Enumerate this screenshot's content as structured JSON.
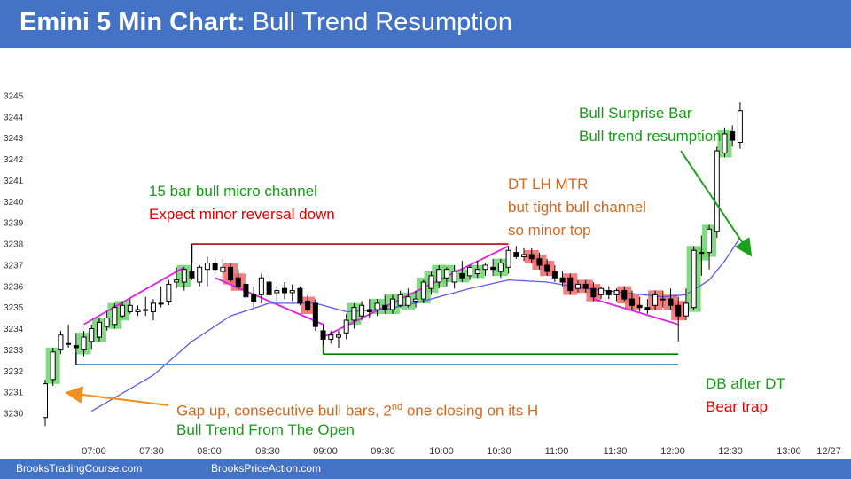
{
  "title": {
    "bold": "Emini 5 Min Chart:",
    "rest": " Bull Trend Resumption"
  },
  "footer": {
    "left": "BrooksTradingCourse.com",
    "right": "BrooksPriceAction.com"
  },
  "annotations": {
    "micro_channel_1": "15 bar bull micro channel",
    "micro_channel_2": "Expect minor reversal down",
    "dt_1": "DT LH MTR",
    "dt_2": "but tight bull channel",
    "dt_3": "so minor top",
    "surprise_1": "Bull Surprise Bar",
    "surprise_2": "Bull trend resumption",
    "gap_1": "Gap up, consecutive  bull bars, 2",
    "gap_sup": "nd",
    "gap_1b": " one closing on its H",
    "gap_2": "Bull Trend From The Open",
    "db_1": "DB after DT",
    "db_2": "Bear trap"
  },
  "colors": {
    "bull_highlight": "#6fd46f",
    "bear_highlight": "#f06868",
    "ema": "#5a5ae6",
    "magenta": "#e020e0",
    "red_line": "#c00000",
    "green_line": "#008000",
    "blue_line": "#1f6fb5",
    "arrow_orange": "#f0901e",
    "arrow_green": "#1aa01a",
    "title_bar": "#4472c4"
  },
  "chart_data": {
    "type": "candlestick",
    "y_ticks": [
      3230,
      3231,
      3232,
      3233,
      3234,
      3235,
      3236,
      3237,
      3238,
      3239,
      3240,
      3241,
      3242,
      3243,
      3244,
      3245
    ],
    "ylim": [
      3229.5,
      3245.5
    ],
    "x_ticks": [
      "07:00",
      "07:30",
      "08:00",
      "08:30",
      "09:00",
      "09:30",
      "10:00",
      "10:30",
      "11:00",
      "11:30",
      "12:00",
      "12:30",
      "13:00",
      "12/27"
    ],
    "bars": [
      {
        "t": 1,
        "o": 3229.8,
        "h": 3231.6,
        "l": 3229.4,
        "c": 3231.4
      },
      {
        "t": 2,
        "o": 3231.6,
        "h": 3233.1,
        "l": 3231.3,
        "c": 3232.9
      },
      {
        "t": 3,
        "o": 3233.0,
        "h": 3233.9,
        "l": 3232.8,
        "c": 3233.7
      },
      {
        "t": 4,
        "o": 3233.3,
        "h": 3234.2,
        "l": 3233.1,
        "c": 3233.3
      },
      {
        "t": 5,
        "o": 3233.2,
        "h": 3233.8,
        "l": 3232.3,
        "c": 3233.1
      },
      {
        "t": 6,
        "o": 3233.0,
        "h": 3233.9,
        "l": 3232.7,
        "c": 3233.6
      },
      {
        "t": 7,
        "o": 3233.4,
        "h": 3234.2,
        "l": 3233.0,
        "c": 3234.0
      },
      {
        "t": 8,
        "o": 3233.6,
        "h": 3234.5,
        "l": 3233.4,
        "c": 3234.3
      },
      {
        "t": 9,
        "o": 3234.1,
        "h": 3234.8,
        "l": 3233.9,
        "c": 3234.5
      },
      {
        "t": 10,
        "o": 3234.2,
        "h": 3235.2,
        "l": 3234.0,
        "c": 3235.0
      },
      {
        "t": 11,
        "o": 3234.6,
        "h": 3235.3,
        "l": 3234.5,
        "c": 3235.1
      },
      {
        "t": 12,
        "o": 3234.8,
        "h": 3235.4,
        "l": 3234.7,
        "c": 3235.1
      },
      {
        "t": 13,
        "o": 3234.8,
        "h": 3235.1,
        "l": 3234.6,
        "c": 3234.9
      },
      {
        "t": 14,
        "o": 3234.9,
        "h": 3235.5,
        "l": 3234.6,
        "c": 3234.9
      },
      {
        "t": 15,
        "o": 3234.8,
        "h": 3235.4,
        "l": 3234.4,
        "c": 3235.2
      },
      {
        "t": 16,
        "o": 3235.2,
        "h": 3236.0,
        "l": 3235.0,
        "c": 3235.2
      },
      {
        "t": 17,
        "o": 3235.3,
        "h": 3236.3,
        "l": 3235.1,
        "c": 3236.1
      },
      {
        "t": 18,
        "o": 3236.2,
        "h": 3236.9,
        "l": 3235.9,
        "c": 3236.3
      },
      {
        "t": 19,
        "o": 3236.2,
        "h": 3236.9,
        "l": 3235.8,
        "c": 3236.8
      },
      {
        "t": 20,
        "o": 3236.7,
        "h": 3238.0,
        "l": 3236.3,
        "c": 3236.4
      },
      {
        "t": 21,
        "o": 3236.2,
        "h": 3237.0,
        "l": 3236.0,
        "c": 3236.9
      },
      {
        "t": 22,
        "o": 3236.8,
        "h": 3237.4,
        "l": 3236.0,
        "c": 3237.1
      },
      {
        "t": 23,
        "o": 3237.1,
        "h": 3237.3,
        "l": 3236.6,
        "c": 3236.8
      },
      {
        "t": 24,
        "o": 3236.7,
        "h": 3237.3,
        "l": 3236.4,
        "c": 3236.9
      },
      {
        "t": 25,
        "o": 3236.9,
        "h": 3237.1,
        "l": 3236.2,
        "c": 3236.3
      },
      {
        "t": 26,
        "o": 3236.4,
        "h": 3236.8,
        "l": 3235.8,
        "c": 3236.0
      },
      {
        "t": 27,
        "o": 3236.1,
        "h": 3236.6,
        "l": 3235.4,
        "c": 3235.5
      },
      {
        "t": 28,
        "o": 3235.6,
        "h": 3236.0,
        "l": 3235.0,
        "c": 3235.3
      },
      {
        "t": 29,
        "o": 3235.6,
        "h": 3236.6,
        "l": 3235.2,
        "c": 3236.4
      },
      {
        "t": 30,
        "o": 3236.2,
        "h": 3236.5,
        "l": 3235.5,
        "c": 3235.6
      },
      {
        "t": 31,
        "o": 3235.7,
        "h": 3236.0,
        "l": 3235.3,
        "c": 3235.8
      },
      {
        "t": 32,
        "o": 3235.9,
        "h": 3236.2,
        "l": 3235.4,
        "c": 3235.7
      },
      {
        "t": 33,
        "o": 3235.7,
        "h": 3236.1,
        "l": 3235.3,
        "c": 3235.8
      },
      {
        "t": 34,
        "o": 3235.9,
        "h": 3236.0,
        "l": 3235.1,
        "c": 3235.2
      },
      {
        "t": 35,
        "o": 3235.3,
        "h": 3235.6,
        "l": 3234.8,
        "c": 3234.9
      },
      {
        "t": 36,
        "o": 3235.2,
        "h": 3235.4,
        "l": 3233.9,
        "c": 3234.1
      },
      {
        "t": 37,
        "o": 3233.9,
        "h": 3234.2,
        "l": 3233.2,
        "c": 3233.5
      },
      {
        "t": 38,
        "o": 3233.5,
        "h": 3233.9,
        "l": 3233.3,
        "c": 3233.7
      },
      {
        "t": 39,
        "o": 3233.6,
        "h": 3233.9,
        "l": 3233.1,
        "c": 3233.7
      },
      {
        "t": 40,
        "o": 3233.8,
        "h": 3234.7,
        "l": 3233.5,
        "c": 3234.4
      },
      {
        "t": 41,
        "o": 3234.4,
        "h": 3235.2,
        "l": 3234.0,
        "c": 3235.0
      },
      {
        "t": 42,
        "o": 3234.6,
        "h": 3235.3,
        "l": 3234.4,
        "c": 3235.1
      },
      {
        "t": 43,
        "o": 3234.9,
        "h": 3235.4,
        "l": 3234.5,
        "c": 3234.8
      },
      {
        "t": 44,
        "o": 3234.9,
        "h": 3235.4,
        "l": 3234.6,
        "c": 3235.2
      },
      {
        "t": 45,
        "o": 3235.1,
        "h": 3235.6,
        "l": 3234.7,
        "c": 3234.9
      },
      {
        "t": 46,
        "o": 3234.9,
        "h": 3235.6,
        "l": 3234.7,
        "c": 3235.4
      },
      {
        "t": 47,
        "o": 3235.1,
        "h": 3235.8,
        "l": 3235.0,
        "c": 3235.6
      },
      {
        "t": 48,
        "o": 3235.1,
        "h": 3235.9,
        "l": 3235.0,
        "c": 3235.5
      },
      {
        "t": 49,
        "o": 3235.3,
        "h": 3235.8,
        "l": 3235.0,
        "c": 3235.4
      },
      {
        "t": 50,
        "o": 3235.4,
        "h": 3236.3,
        "l": 3235.2,
        "c": 3236.2
      },
      {
        "t": 51,
        "o": 3235.9,
        "h": 3236.7,
        "l": 3235.6,
        "c": 3236.5
      },
      {
        "t": 52,
        "o": 3236.2,
        "h": 3237.0,
        "l": 3235.9,
        "c": 3236.8
      },
      {
        "t": 53,
        "o": 3236.4,
        "h": 3236.9,
        "l": 3236.0,
        "c": 3236.8
      },
      {
        "t": 54,
        "o": 3236.2,
        "h": 3237.0,
        "l": 3235.9,
        "c": 3236.7
      },
      {
        "t": 55,
        "o": 3236.6,
        "h": 3237.2,
        "l": 3236.2,
        "c": 3236.4
      },
      {
        "t": 56,
        "o": 3236.5,
        "h": 3237.0,
        "l": 3236.3,
        "c": 3236.9
      },
      {
        "t": 57,
        "o": 3236.6,
        "h": 3237.2,
        "l": 3236.4,
        "c": 3236.8
      },
      {
        "t": 58,
        "o": 3236.8,
        "h": 3237.1,
        "l": 3236.5,
        "c": 3237.0
      },
      {
        "t": 59,
        "o": 3236.9,
        "h": 3237.3,
        "l": 3236.5,
        "c": 3236.8
      },
      {
        "t": 60,
        "o": 3236.7,
        "h": 3237.3,
        "l": 3236.4,
        "c": 3237.1
      },
      {
        "t": 61,
        "o": 3236.9,
        "h": 3237.9,
        "l": 3236.6,
        "c": 3237.7
      },
      {
        "t": 62,
        "o": 3237.6,
        "h": 3237.9,
        "l": 3237.3,
        "c": 3237.4
      },
      {
        "t": 63,
        "o": 3237.4,
        "h": 3237.8,
        "l": 3237.2,
        "c": 3237.5
      },
      {
        "t": 64,
        "o": 3237.5,
        "h": 3237.8,
        "l": 3237.1,
        "c": 3237.3
      },
      {
        "t": 65,
        "o": 3237.3,
        "h": 3237.6,
        "l": 3236.8,
        "c": 3237.0
      },
      {
        "t": 66,
        "o": 3237.0,
        "h": 3237.3,
        "l": 3236.5,
        "c": 3236.7
      },
      {
        "t": 67,
        "o": 3236.7,
        "h": 3237.0,
        "l": 3236.2,
        "c": 3236.4
      },
      {
        "t": 68,
        "o": 3236.4,
        "h": 3236.7,
        "l": 3236.0,
        "c": 3236.2
      },
      {
        "t": 69,
        "o": 3236.4,
        "h": 3236.6,
        "l": 3235.6,
        "c": 3235.8
      },
      {
        "t": 70,
        "o": 3235.9,
        "h": 3236.3,
        "l": 3235.7,
        "c": 3236.1
      },
      {
        "t": 71,
        "o": 3236.1,
        "h": 3236.3,
        "l": 3235.7,
        "c": 3235.9
      },
      {
        "t": 72,
        "o": 3235.9,
        "h": 3236.2,
        "l": 3235.3,
        "c": 3235.5
      },
      {
        "t": 73,
        "o": 3235.6,
        "h": 3236.0,
        "l": 3235.4,
        "c": 3235.9
      },
      {
        "t": 74,
        "o": 3235.8,
        "h": 3236.0,
        "l": 3235.4,
        "c": 3235.6
      },
      {
        "t": 75,
        "o": 3235.6,
        "h": 3235.9,
        "l": 3235.3,
        "c": 3235.8
      },
      {
        "t": 76,
        "o": 3235.8,
        "h": 3236.0,
        "l": 3235.3,
        "c": 3235.4
      },
      {
        "t": 77,
        "o": 3235.4,
        "h": 3235.8,
        "l": 3234.9,
        "c": 3235.1
      },
      {
        "t": 78,
        "o": 3235.1,
        "h": 3235.5,
        "l": 3234.8,
        "c": 3235.0
      },
      {
        "t": 79,
        "o": 3235.0,
        "h": 3235.4,
        "l": 3234.7,
        "c": 3234.9
      },
      {
        "t": 80,
        "o": 3235.1,
        "h": 3235.8,
        "l": 3234.9,
        "c": 3235.6
      },
      {
        "t": 81,
        "o": 3235.4,
        "h": 3235.8,
        "l": 3235.0,
        "c": 3235.4
      },
      {
        "t": 82,
        "o": 3235.4,
        "h": 3235.9,
        "l": 3234.9,
        "c": 3235.1
      },
      {
        "t": 83,
        "o": 3235.1,
        "h": 3235.5,
        "l": 3233.4,
        "c": 3234.6
      },
      {
        "t": 84,
        "o": 3234.6,
        "h": 3235.9,
        "l": 3234.4,
        "c": 3235.2
      },
      {
        "t": 85,
        "o": 3235.0,
        "h": 3237.9,
        "l": 3234.9,
        "c": 3237.7
      },
      {
        "t": 86,
        "o": 3237.6,
        "h": 3238.4,
        "l": 3236.5,
        "c": 3237.6
      },
      {
        "t": 87,
        "o": 3237.6,
        "h": 3238.9,
        "l": 3236.8,
        "c": 3238.7
      },
      {
        "t": 88,
        "o": 3238.6,
        "h": 3242.6,
        "l": 3238.3,
        "c": 3242.4
      },
      {
        "t": 89,
        "o": 3242.3,
        "h": 3243.5,
        "l": 3242.1,
        "c": 3243.2
      },
      {
        "t": 90,
        "o": 3243.3,
        "h": 3243.6,
        "l": 3242.6,
        "c": 3242.9
      },
      {
        "t": 91,
        "o": 3242.8,
        "h": 3244.7,
        "l": 3242.5,
        "c": 3244.3
      }
    ],
    "bull_highlights": [
      2,
      6,
      8,
      10,
      11,
      19,
      41,
      44,
      46,
      48,
      50,
      51,
      52,
      53,
      55,
      57,
      60,
      85,
      86,
      87,
      89
    ],
    "bear_highlights": [
      25,
      26,
      35,
      64,
      65,
      66,
      69,
      71,
      72,
      76,
      77,
      80,
      82,
      83
    ],
    "ema": [
      {
        "t": 7,
        "v": 3230.1
      },
      {
        "t": 15,
        "v": 3231.8
      },
      {
        "t": 20,
        "v": 3233.4
      },
      {
        "t": 25,
        "v": 3234.6
      },
      {
        "t": 30,
        "v": 3235.2
      },
      {
        "t": 36,
        "v": 3235.2
      },
      {
        "t": 40,
        "v": 3234.8
      },
      {
        "t": 45,
        "v": 3234.9
      },
      {
        "t": 50,
        "v": 3235.3
      },
      {
        "t": 56,
        "v": 3235.9
      },
      {
        "t": 61,
        "v": 3236.3
      },
      {
        "t": 66,
        "v": 3236.2
      },
      {
        "t": 71,
        "v": 3235.9
      },
      {
        "t": 76,
        "v": 3235.7
      },
      {
        "t": 81,
        "v": 3235.5
      },
      {
        "t": 84,
        "v": 3235.6
      },
      {
        "t": 87,
        "v": 3236.3
      },
      {
        "t": 89,
        "v": 3237.2
      },
      {
        "t": 91,
        "v": 3238.3
      }
    ],
    "lines": {
      "double_top": {
        "t1": 20,
        "t2": 61,
        "v": 3238.0
      },
      "double_bottom": {
        "t1": 37,
        "t2": 83,
        "v": 3232.8
      },
      "gap_low": {
        "t1": 5,
        "t2": 83,
        "v": 3232.3
      },
      "channel_up": {
        "t1": 6,
        "v1": 3234.2,
        "t2": 19,
        "v2": 3236.9
      },
      "channel_down": {
        "t1": 23,
        "v1": 3236.4,
        "t2": 37,
        "v2": 3234.2
      },
      "channel_up_2": {
        "t1": 37,
        "v1": 3233.6,
        "t2": 61,
        "v2": 3237.9
      },
      "channel_down_2": {
        "t1": 72,
        "v1": 3235.4,
        "t2": 83,
        "v2": 3234.2
      }
    }
  }
}
